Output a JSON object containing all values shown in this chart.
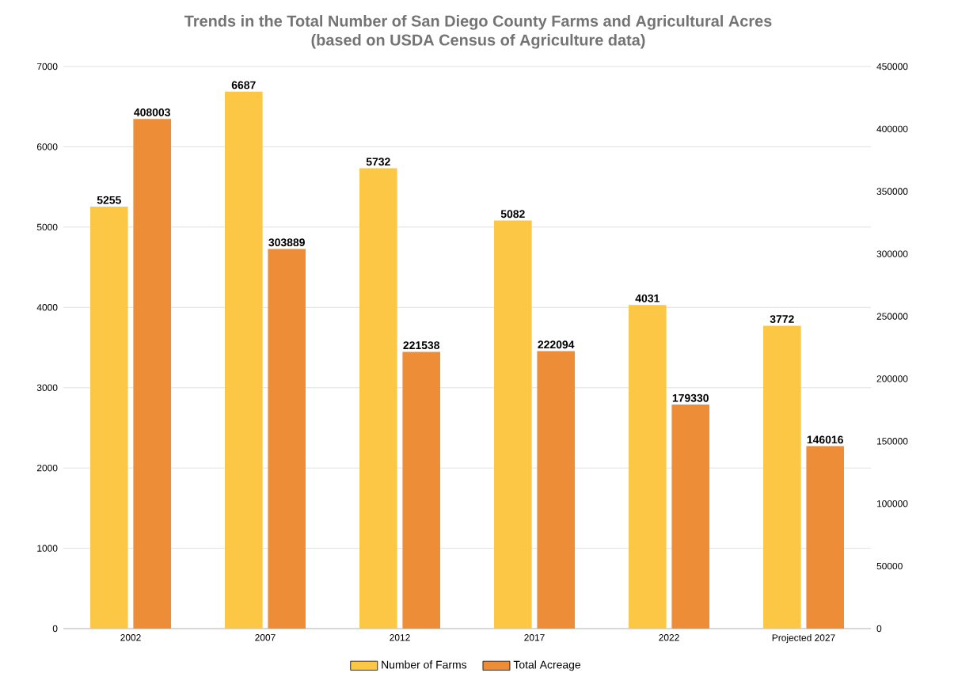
{
  "chart_data": {
    "type": "bar",
    "title": "Trends in the Total Number of San Diego County Farms and Agricultural Acres",
    "subtitle": "(based on USDA Census of Agriculture data)",
    "categories": [
      "2002",
      "2007",
      "2012",
      "2017",
      "2022",
      "Projected 2027"
    ],
    "series": [
      {
        "name": "Number of Farms",
        "color": "#fbc744",
        "values": [
          5255,
          6687,
          5732,
          5082,
          4031,
          3772
        ]
      },
      {
        "name": "Total Acreage",
        "color": "#ee8d37",
        "values": [
          408003,
          303889,
          221538,
          222094,
          179330,
          146016
        ],
        "axis": "y2"
      }
    ],
    "ylim": [
      0,
      7000
    ],
    "yticks": [
      0,
      1000,
      2000,
      3000,
      4000,
      5000,
      6000,
      7000
    ],
    "y2lim": [
      0,
      450000
    ],
    "y2ticks": [
      0,
      50000,
      100000,
      150000,
      200000,
      250000,
      300000,
      350000,
      400000,
      450000
    ],
    "grid": "y",
    "legend": "bottom",
    "data_labels": true
  }
}
